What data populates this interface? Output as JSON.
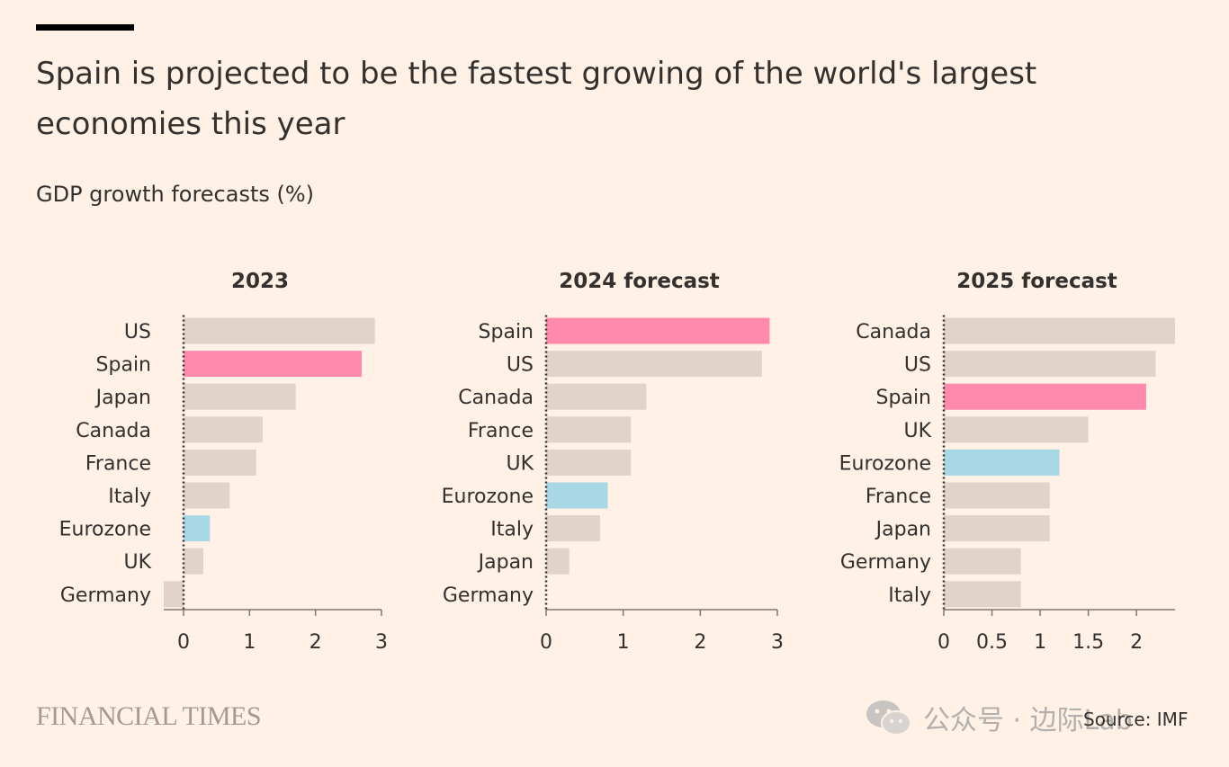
{
  "header": {
    "title": "Spain is projected to be the fastest growing of the world's largest economies this year",
    "subtitle": "GDP growth forecasts (%)"
  },
  "footer": {
    "brand": "FINANCIAL TIMES",
    "source": "Source: IMF",
    "watermark": "公众号 · 边际Lab"
  },
  "colors": {
    "default_bar": "#e0d3c8",
    "spain": "#ff8aae",
    "eurozone": "#a8d8e6",
    "axis": "#807973",
    "text": "#33302e"
  },
  "chart_data": [
    {
      "type": "bar",
      "orientation": "horizontal",
      "title": "2023",
      "categories": [
        "US",
        "Spain",
        "Japan",
        "Canada",
        "France",
        "Italy",
        "Eurozone",
        "UK",
        "Germany"
      ],
      "values": [
        2.9,
        2.7,
        1.7,
        1.2,
        1.1,
        0.7,
        0.4,
        0.3,
        -0.3
      ],
      "highlight": {
        "Spain": "spain",
        "Eurozone": "eurozone"
      },
      "xlim": [
        -0.3,
        3
      ],
      "ticks": [
        0,
        1,
        2,
        3
      ],
      "tick_labels": [
        "0",
        "1",
        "2",
        "3"
      ]
    },
    {
      "type": "bar",
      "orientation": "horizontal",
      "title": "2024 forecast",
      "categories": [
        "Spain",
        "US",
        "Canada",
        "France",
        "UK",
        "Eurozone",
        "Italy",
        "Japan",
        "Germany"
      ],
      "values": [
        2.9,
        2.8,
        1.3,
        1.1,
        1.1,
        0.8,
        0.7,
        0.3,
        0.0
      ],
      "highlight": {
        "Spain": "spain",
        "Eurozone": "eurozone"
      },
      "xlim": [
        0,
        3
      ],
      "ticks": [
        0,
        1,
        2,
        3
      ],
      "tick_labels": [
        "0",
        "1",
        "2",
        "3"
      ]
    },
    {
      "type": "bar",
      "orientation": "horizontal",
      "title": "2025 forecast",
      "categories": [
        "Canada",
        "US",
        "Spain",
        "UK",
        "Eurozone",
        "France",
        "Japan",
        "Germany",
        "Italy"
      ],
      "values": [
        2.4,
        2.2,
        2.1,
        1.5,
        1.2,
        1.1,
        1.1,
        0.8,
        0.8
      ],
      "highlight": {
        "Spain": "spain",
        "Eurozone": "eurozone"
      },
      "xlim": [
        0,
        2.4
      ],
      "ticks": [
        0,
        0.5,
        1,
        1.5,
        2
      ],
      "tick_labels": [
        "0",
        "0.5",
        "1",
        "1.5",
        "2"
      ]
    }
  ]
}
